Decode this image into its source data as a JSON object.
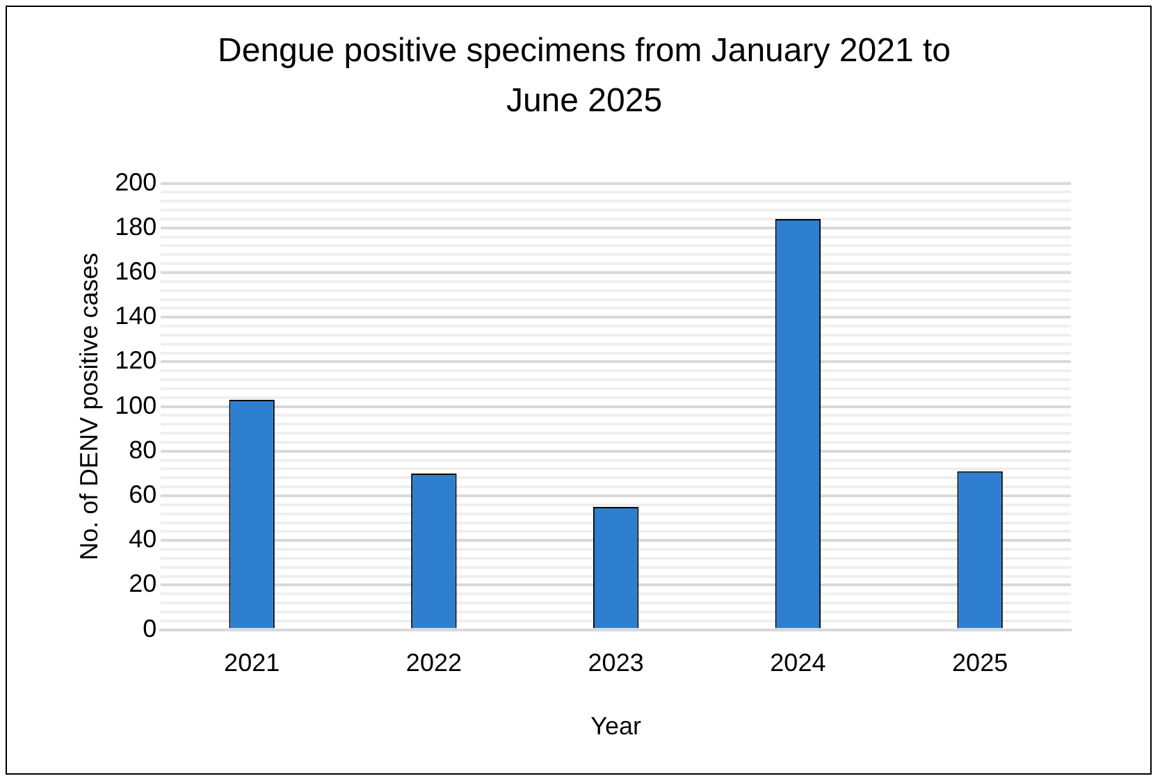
{
  "chart_data": {
    "type": "bar",
    "title": "Dengue positive specimens from January 2021 to June 2025",
    "xlabel": "Year",
    "ylabel": "No. of DENV positive cases",
    "categories": [
      "2021",
      "2022",
      "2023",
      "2024",
      "2025"
    ],
    "values": [
      103,
      70,
      55,
      184,
      71
    ],
    "color": "#2e7fd0",
    "ylim": [
      0,
      200
    ],
    "yticks": [
      0,
      {
        "value": 4,
        "label": null
      },
      {
        "value": 8,
        "label": null
      },
      {
        "value": 12,
        "label": null
      },
      {
        "value": 16,
        "label": null
      },
      20,
      {
        "value": 24,
        "label": null
      },
      {
        "value": 28,
        "label": null
      },
      {
        "value": 32,
        "label": null
      },
      {
        "value": 36,
        "label": null
      },
      40,
      {
        "value": 44,
        "label": null
      },
      {
        "value": 48,
        "label": null
      },
      {
        "value": 52,
        "label": null
      },
      {
        "value": 56,
        "label": null
      },
      60,
      {
        "value": 64,
        "label": null
      },
      {
        "value": 68,
        "label": null
      },
      {
        "value": 72,
        "label": null
      },
      {
        "value": 76,
        "label": null
      },
      80,
      {
        "value": 84,
        "label": null
      },
      {
        "value": 88,
        "label": null
      },
      {
        "value": 92,
        "label": null
      },
      {
        "value": 96,
        "label": null
      },
      100,
      {
        "value": 104,
        "label": null
      },
      {
        "value": 108,
        "label": null
      },
      {
        "value": 112,
        "label": null
      },
      {
        "value": 116,
        "label": null
      },
      120,
      {
        "value": 124,
        "label": null
      },
      {
        "value": 128,
        "label": null
      },
      {
        "value": 132,
        "label": null
      },
      {
        "value": 136,
        "label": null
      },
      140,
      {
        "value": 144,
        "label": null
      },
      {
        "value": 148,
        "label": null
      },
      {
        "value": 152,
        "label": null
      },
      {
        "value": 156,
        "label": null
      },
      160,
      {
        "value": 164,
        "label": null
      },
      {
        "value": 168,
        "label": null
      },
      {
        "value": 172,
        "label": null
      },
      {
        "value": 176,
        "label": null
      },
      180,
      {
        "value": 184,
        "label": null
      },
      {
        "value": 188,
        "label": null
      },
      {
        "value": 192,
        "label": null
      },
      {
        "value": 196,
        "label": null
      },
      200
    ],
    "grid": "y"
  }
}
